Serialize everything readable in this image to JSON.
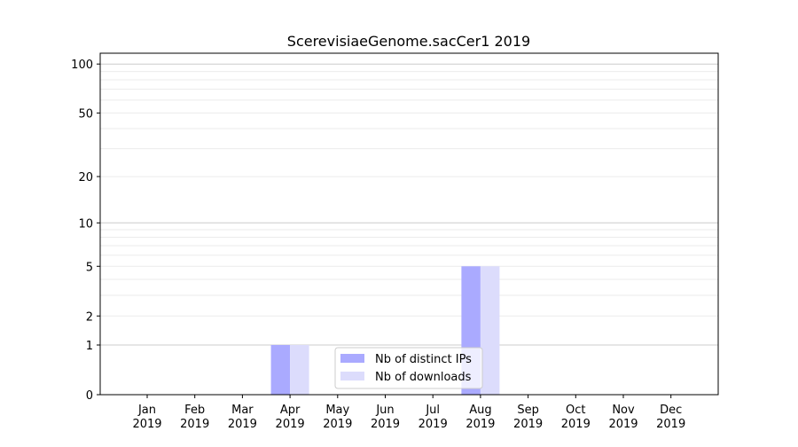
{
  "chart_data": {
    "type": "bar",
    "title": "ScerevisiaeGenome.sacCer1 2019",
    "xlabel": "",
    "ylabel": "",
    "yscale": "log(1+y)",
    "ylim": [
      0,
      110
    ],
    "yticks": [
      0,
      1,
      2,
      5,
      10,
      20,
      50,
      100
    ],
    "grid": true,
    "legend_position": "bottom-center",
    "categories": [
      "Jan\n2019",
      "Feb\n2019",
      "Mar\n2019",
      "Apr\n2019",
      "May\n2019",
      "Jun\n2019",
      "Jul\n2019",
      "Aug\n2019",
      "Sep\n2019",
      "Oct\n2019",
      "Nov\n2019",
      "Dec\n2019"
    ],
    "series": [
      {
        "name": "Nb of distinct IPs",
        "color": "#aaaaff",
        "values": [
          0,
          0,
          0,
          1,
          0,
          0,
          0,
          5,
          0,
          0,
          0,
          0
        ]
      },
      {
        "name": "Nb of downloads",
        "color": "#dcdcfc",
        "values": [
          0,
          0,
          0,
          1,
          0,
          0,
          0,
          5,
          0,
          0,
          0,
          0
        ]
      }
    ]
  }
}
